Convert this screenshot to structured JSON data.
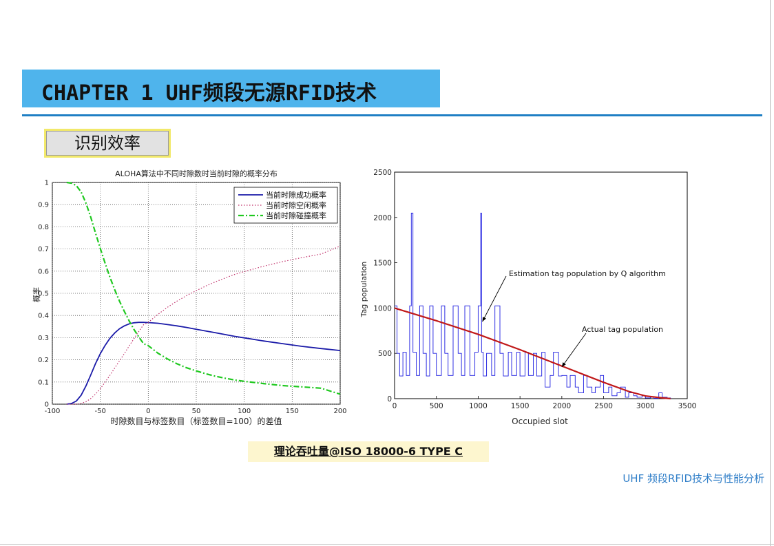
{
  "header": {
    "chapter_title": "CHAPTER 1  UHF频段无源RFID技术",
    "section_badge": "识别效率"
  },
  "caption": "理论吞吐量@ISO 18000-6 TYPE C",
  "footer_note": "UHF 频段RFID技术与性能分析",
  "colors": {
    "accent_bar": "#4fb4ec",
    "rule": "#1f7fc4",
    "success_line": "#1a1aa8",
    "idle_line": "#c0306a",
    "collision_line": "#1ec81e",
    "tag_blue": "#1a1ae0",
    "estimate_red": "#c01818"
  },
  "chart_data": [
    {
      "type": "line",
      "title": "ALOHA算法中不同时隙数时当前时隙的概率分布",
      "xlabel": "时隙数目与标签数目（标签数目=100）的差值",
      "ylabel": "概率",
      "xlim": [
        -100,
        200
      ],
      "ylim": [
        0,
        1
      ],
      "xticks": [
        "-100",
        "-50",
        "0",
        "50",
        "100",
        "150",
        "200"
      ],
      "yticks": [
        "0",
        "0.1",
        "0.2",
        "0.3",
        "0.4",
        "0.5",
        "0.6",
        "0.7",
        "0.8",
        "0.9",
        "1"
      ],
      "grid": true,
      "legend_position": "top-right",
      "x": [
        -85,
        -80,
        -75,
        -70,
        -65,
        -60,
        -55,
        -50,
        -45,
        -40,
        -35,
        -30,
        -25,
        -20,
        -15,
        -10,
        -5,
        0,
        10,
        20,
        30,
        40,
        50,
        60,
        70,
        80,
        90,
        100,
        120,
        140,
        160,
        180,
        200
      ],
      "series": [
        {
          "name": "当前时隙成功概率",
          "values": [
            0.0,
            0.003,
            0.014,
            0.04,
            0.082,
            0.131,
            0.183,
            0.228,
            0.265,
            0.297,
            0.321,
            0.34,
            0.353,
            0.362,
            0.367,
            0.369,
            0.369,
            0.368,
            0.365,
            0.359,
            0.353,
            0.346,
            0.338,
            0.33,
            0.322,
            0.314,
            0.306,
            0.299,
            0.285,
            0.273,
            0.261,
            0.251,
            0.242
          ]
        },
        {
          "name": "当前时隙空闲概率",
          "values": [
            0.0,
            0.0,
            0.0,
            0.003,
            0.011,
            0.025,
            0.045,
            0.07,
            0.099,
            0.13,
            0.163,
            0.195,
            0.228,
            0.262,
            0.295,
            0.327,
            0.358,
            0.369,
            0.405,
            0.437,
            0.465,
            0.49,
            0.512,
            0.533,
            0.552,
            0.569,
            0.585,
            0.598,
            0.622,
            0.643,
            0.661,
            0.677,
            0.713
          ]
        },
        {
          "name": "当前时隙碰撞概率",
          "values": [
            1.0,
            0.997,
            0.986,
            0.957,
            0.907,
            0.844,
            0.772,
            0.702,
            0.636,
            0.573,
            0.516,
            0.465,
            0.419,
            0.376,
            0.338,
            0.304,
            0.273,
            0.264,
            0.23,
            0.204,
            0.182,
            0.164,
            0.15,
            0.137,
            0.126,
            0.117,
            0.109,
            0.103,
            0.093,
            0.084,
            0.078,
            0.072,
            0.045
          ]
        }
      ]
    },
    {
      "type": "line",
      "title": "",
      "xlabel": "Occupied slot",
      "ylabel": "Tag population",
      "xlim": [
        0,
        3500
      ],
      "ylim": [
        0,
        2500
      ],
      "xticks": [
        "0",
        "500",
        "1000",
        "1500",
        "2000",
        "2500",
        "3000",
        "3500"
      ],
      "yticks": [
        "0",
        "500",
        "1000",
        "1500",
        "2000",
        "2500"
      ],
      "grid": false,
      "annotations": [
        {
          "text": "Estimation tag population by Q algorithm",
          "points_to": [
            1050,
            850
          ]
        },
        {
          "text": "Actual tag population",
          "points_to": [
            2000,
            350
          ]
        }
      ],
      "series": [
        {
          "name": "Estimation tag population by Q algorithm",
          "x": [
            0,
            30,
            60,
            100,
            140,
            180,
            200,
            220,
            260,
            300,
            340,
            380,
            420,
            460,
            500,
            560,
            600,
            640,
            700,
            760,
            800,
            840,
            900,
            960,
            1000,
            1030,
            1040,
            1060,
            1100,
            1160,
            1200,
            1260,
            1300,
            1360,
            1400,
            1460,
            1500,
            1560,
            1600,
            1660,
            1700,
            1760,
            1800,
            1860,
            1900,
            1960,
            2000,
            2060,
            2100,
            2160,
            2200,
            2260,
            2300,
            2360,
            2400,
            2460,
            2500,
            2560,
            2600,
            2660,
            2700,
            2760,
            2800,
            2860,
            2900,
            2960,
            3000,
            3060,
            3100,
            3160,
            3200,
            3260,
            3300
          ],
          "values": [
            1024,
            500,
            250,
            512,
            256,
            1024,
            2048,
            512,
            256,
            1024,
            500,
            250,
            1024,
            500,
            256,
            1024,
            500,
            256,
            1024,
            500,
            256,
            1024,
            256,
            512,
            1024,
            2048,
            512,
            250,
            500,
            256,
            1024,
            500,
            250,
            512,
            256,
            512,
            250,
            512,
            256,
            500,
            250,
            512,
            128,
            256,
            512,
            250,
            256,
            128,
            256,
            128,
            64,
            256,
            128,
            64,
            128,
            256,
            64,
            128,
            32,
            64,
            128,
            16,
            64,
            32,
            16,
            32,
            8,
            16,
            4,
            64,
            16,
            8,
            0
          ]
        },
        {
          "name": "Actual tag population",
          "x": [
            0,
            500,
            1000,
            1500,
            2000,
            2500,
            2800,
            3000,
            3200,
            3300
          ],
          "values": [
            1000,
            860,
            710,
            540,
            360,
            180,
            80,
            30,
            8,
            0
          ]
        }
      ]
    }
  ]
}
